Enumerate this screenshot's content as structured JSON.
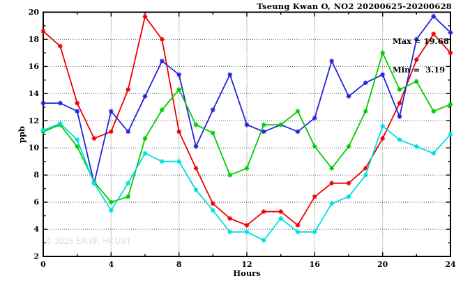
{
  "title": "Tseung Kwan O, NO2 20200625-20200628",
  "watermark": "© 2026 ENVF, HKUST",
  "annotation": {
    "max_label": "Max = 19.68",
    "min_label": "Min =  3.19"
  },
  "chart_data": {
    "type": "line",
    "title": "Tseung Kwan O, NO2 20200625-20200628",
    "xlabel": "Hours",
    "ylabel": "ppb",
    "xlim": [
      0,
      24
    ],
    "ylim": [
      2,
      20
    ],
    "grid": true,
    "legend": "none",
    "max": 19.68,
    "min": 3.19,
    "x_major_ticks": [
      0,
      4,
      8,
      12,
      16,
      20,
      24
    ],
    "x_minor_ticks": [
      2,
      6,
      10,
      14,
      18,
      22
    ],
    "y_major_ticks": [
      2,
      4,
      6,
      8,
      10,
      12,
      14,
      16,
      18,
      20
    ],
    "y_minor_ticks": [
      3,
      5,
      7,
      9,
      11,
      13,
      15,
      17,
      19
    ],
    "x_gridlines": [
      4,
      8,
      12,
      16,
      20
    ],
    "y_gridlines": [
      4,
      6,
      8,
      10,
      12,
      14,
      16,
      18
    ],
    "x": [
      0,
      1,
      2,
      3,
      4,
      5,
      6,
      7,
      8,
      9,
      10,
      11,
      12,
      13,
      14,
      15,
      16,
      17,
      18,
      19,
      20,
      21,
      22,
      23,
      24
    ],
    "series": [
      {
        "name": "red-line",
        "color": "#ee0000",
        "values": [
          18.6,
          17.5,
          13.3,
          10.7,
          11.2,
          14.3,
          19.68,
          18.0,
          11.2,
          8.5,
          5.9,
          4.8,
          4.3,
          5.3,
          5.3,
          4.3,
          6.4,
          7.4,
          7.4,
          8.5,
          10.7,
          13.3,
          16.5,
          18.4,
          17.0
        ]
      },
      {
        "name": "blue-line",
        "color": "#2222dd",
        "values": [
          13.3,
          13.3,
          12.7,
          7.4,
          12.7,
          11.2,
          13.8,
          16.4,
          15.4,
          10.1,
          12.8,
          15.4,
          11.7,
          11.2,
          11.7,
          11.2,
          12.2,
          16.4,
          13.8,
          14.8,
          15.4,
          12.3,
          18.0,
          19.7,
          18.5
        ]
      },
      {
        "name": "green-line",
        "color": "#00cc00",
        "values": [
          11.2,
          11.7,
          10.1,
          7.5,
          6.0,
          6.4,
          10.7,
          12.8,
          14.3,
          11.7,
          11.1,
          8.0,
          8.5,
          11.7,
          11.7,
          12.7,
          10.1,
          8.5,
          10.1,
          12.7,
          17.0,
          14.3,
          14.9,
          12.7,
          13.2
        ]
      },
      {
        "name": "cyan-line",
        "color": "#00dddd",
        "values": [
          11.3,
          11.8,
          10.6,
          7.4,
          5.4,
          7.4,
          9.6,
          9.0,
          9.0,
          6.9,
          5.4,
          3.8,
          3.8,
          3.19,
          4.8,
          3.8,
          3.8,
          5.9,
          6.4,
          8.0,
          11.6,
          10.6,
          10.1,
          9.6,
          11.0
        ]
      }
    ]
  }
}
